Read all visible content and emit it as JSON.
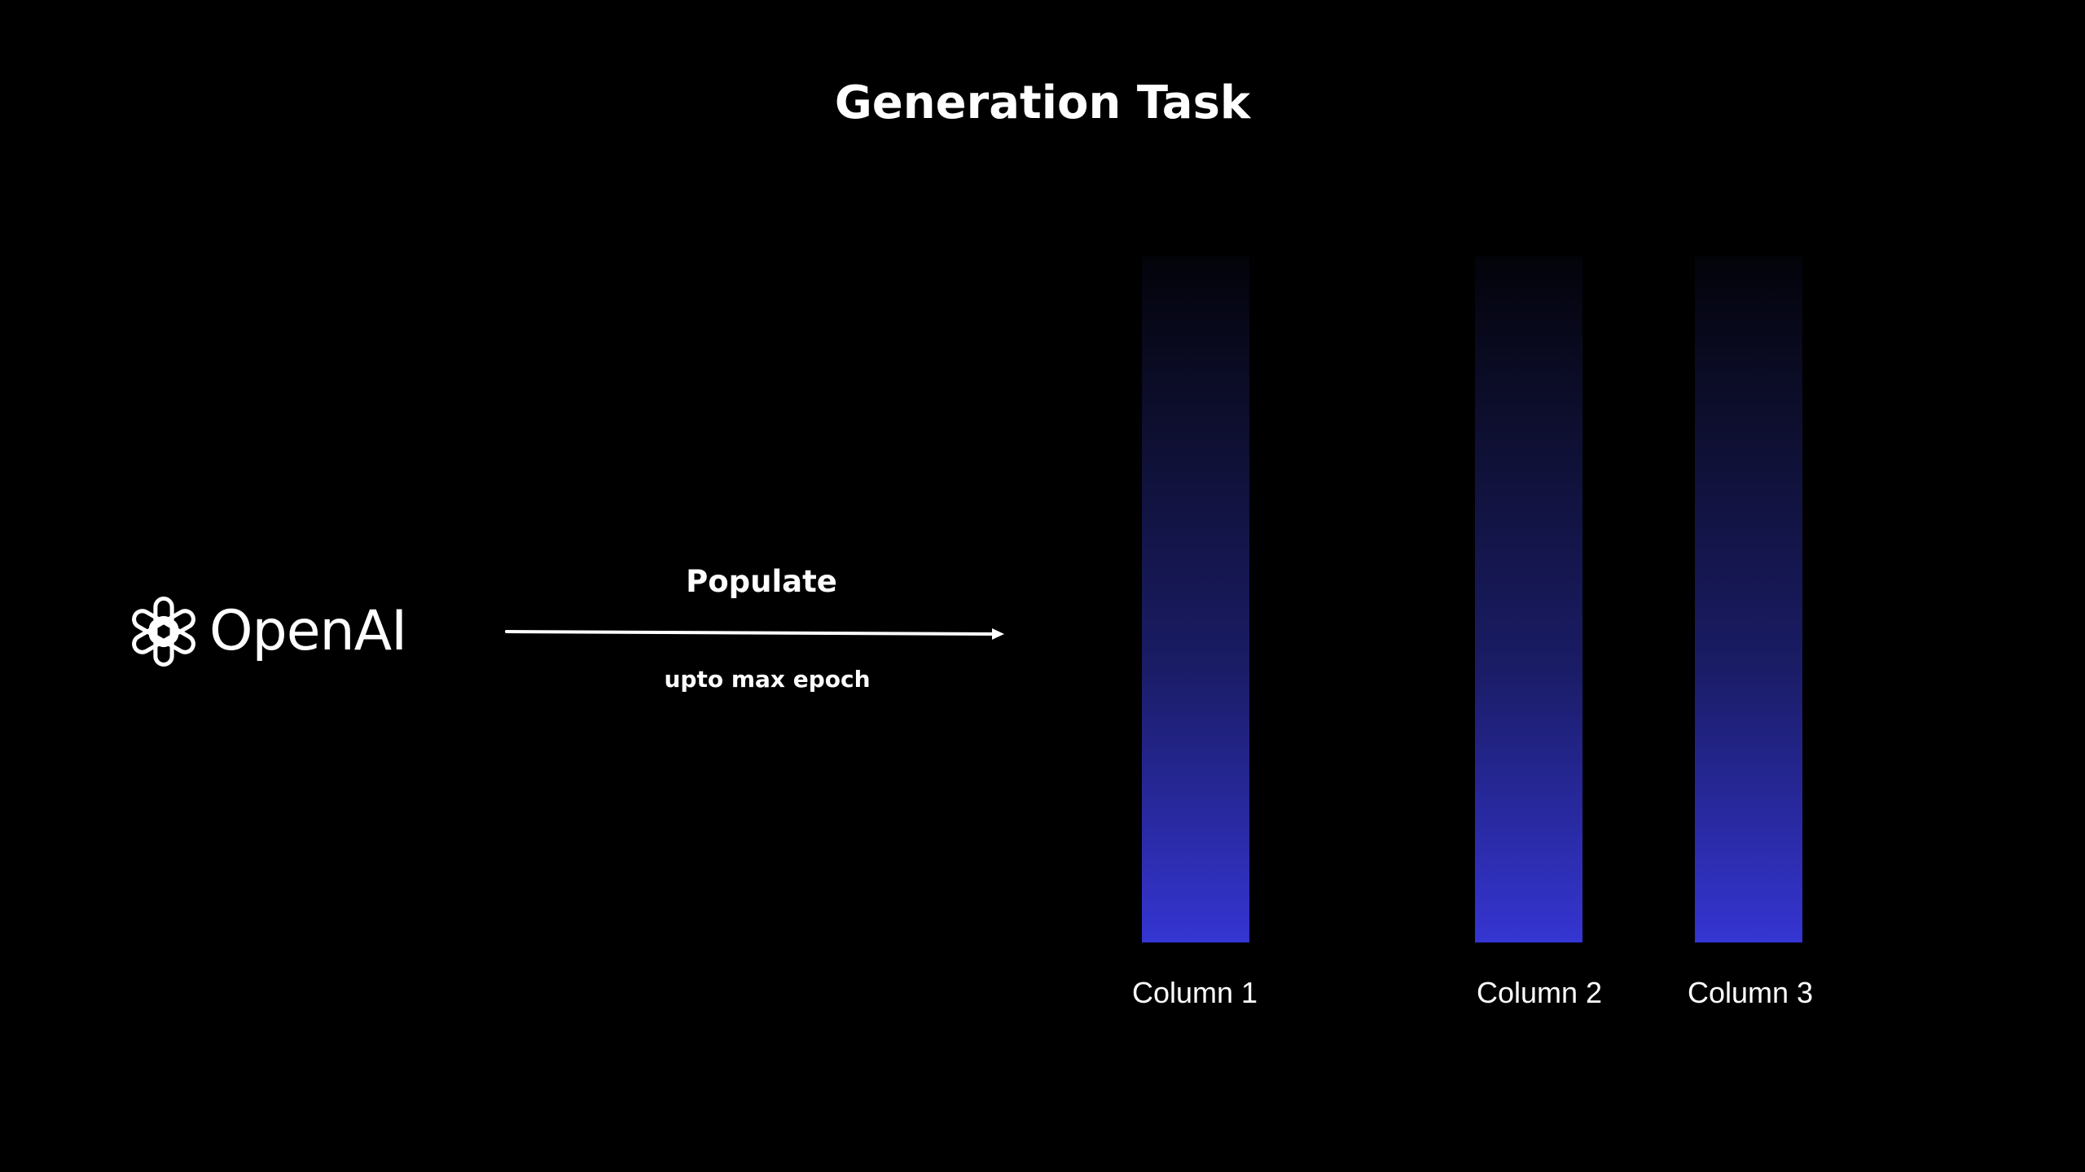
{
  "title": "Generation Task",
  "logo": {
    "icon": "openai-logo-icon",
    "text": "OpenAI"
  },
  "arrow": {
    "label": "Populate",
    "sublabel": "upto max epoch"
  },
  "columns": [
    {
      "label": "Column 1"
    },
    {
      "label": "Column 2"
    },
    {
      "label": "Column 3"
    }
  ],
  "colors": {
    "background": "#000000",
    "bar_top": "#03030a",
    "bar_bottom": "#3535d2",
    "text": "#ffffff"
  }
}
